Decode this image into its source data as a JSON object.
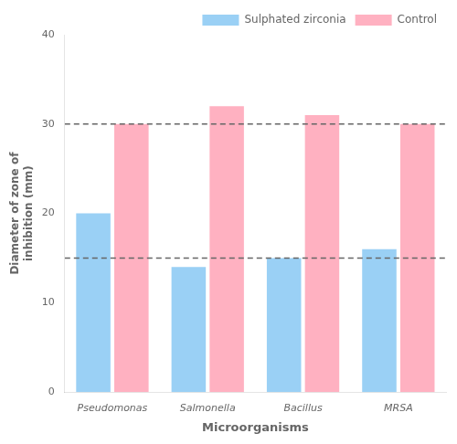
{
  "chart_data": {
    "type": "bar",
    "categories": [
      "Pseudomonas",
      "Salmonella",
      "Bacillus",
      "MRSA"
    ],
    "series": [
      {
        "name": "Sulphated zirconia",
        "values": [
          20,
          14,
          15,
          16
        ]
      },
      {
        "name": "Control",
        "values": [
          30,
          32,
          31,
          30
        ]
      }
    ],
    "xlabel": "Microorganisms",
    "ylabel": "Diameter of zone of\ninhibition (mm)",
    "ylim": [
      0,
      40
    ],
    "yticks": [
      0,
      10,
      20,
      30,
      40
    ],
    "grid": false,
    "legend": "upper right",
    "hlines": [
      15,
      30
    ]
  }
}
